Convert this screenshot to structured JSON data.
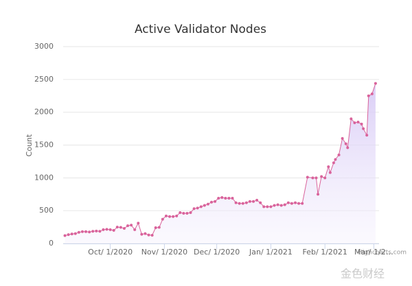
{
  "chart_data": {
    "type": "line",
    "title": "Active Validator Nodes",
    "y_label": "Count",
    "credits": "Highcharts.com",
    "watermark": "金色财经",
    "color": "#d9639b",
    "area": true,
    "grid": true,
    "x": [
      "2020-09-05",
      "2020-09-07",
      "2020-09-09",
      "2020-09-11",
      "2020-09-13",
      "2020-09-15",
      "2020-09-17",
      "2020-09-19",
      "2020-09-21",
      "2020-09-23",
      "2020-09-25",
      "2020-09-27",
      "2020-09-29",
      "2020-10-01",
      "2020-10-03",
      "2020-10-05",
      "2020-10-07",
      "2020-10-09",
      "2020-10-11",
      "2020-10-13",
      "2020-10-15",
      "2020-10-17",
      "2020-10-19",
      "2020-10-21",
      "2020-10-23",
      "2020-10-25",
      "2020-10-27",
      "2020-10-29",
      "2020-10-31",
      "2020-11-02",
      "2020-11-04",
      "2020-11-06",
      "2020-11-08",
      "2020-11-10",
      "2020-11-12",
      "2020-11-14",
      "2020-11-16",
      "2020-11-18",
      "2020-11-20",
      "2020-11-22",
      "2020-11-24",
      "2020-11-26",
      "2020-11-28",
      "2020-11-30",
      "2020-12-02",
      "2020-12-04",
      "2020-12-06",
      "2020-12-08",
      "2020-12-10",
      "2020-12-12",
      "2020-12-14",
      "2020-12-16",
      "2020-12-18",
      "2020-12-20",
      "2020-12-22",
      "2020-12-24",
      "2020-12-26",
      "2020-12-28",
      "2020-12-30",
      "2021-01-01",
      "2021-01-03",
      "2021-01-05",
      "2021-01-07",
      "2021-01-09",
      "2021-01-11",
      "2021-01-13",
      "2021-01-15",
      "2021-01-17",
      "2021-01-19",
      "2021-01-22",
      "2021-01-25",
      "2021-01-27",
      "2021-01-28",
      "2021-01-30",
      "2021-02-01",
      "2021-02-03",
      "2021-02-04",
      "2021-02-06",
      "2021-02-07",
      "2021-02-09",
      "2021-02-11",
      "2021-02-13",
      "2021-02-14",
      "2021-02-16",
      "2021-02-18",
      "2021-02-20",
      "2021-02-22",
      "2021-02-23",
      "2021-02-25",
      "2021-02-26",
      "2021-02-28",
      "2021-03-02"
    ],
    "values": [
      120,
      135,
      145,
      150,
      170,
      180,
      180,
      175,
      185,
      190,
      185,
      210,
      215,
      210,
      200,
      250,
      245,
      230,
      270,
      280,
      210,
      310,
      140,
      150,
      130,
      125,
      240,
      245,
      370,
      420,
      410,
      410,
      420,
      470,
      460,
      460,
      470,
      530,
      540,
      560,
      580,
      600,
      630,
      640,
      690,
      700,
      690,
      690,
      690,
      620,
      610,
      610,
      620,
      640,
      640,
      660,
      620,
      560,
      560,
      560,
      580,
      590,
      580,
      590,
      620,
      610,
      620,
      610,
      610,
      1010,
      1000,
      1000,
      750,
      1020,
      1000,
      1170,
      1080,
      1230,
      1280,
      1350,
      1600,
      1520,
      1460,
      1900,
      1840,
      1850,
      1820,
      1750,
      1650,
      2250,
      2280,
      2440
    ],
    "xlim": [
      "2020-09-04",
      "2021-03-04"
    ],
    "xticks": [
      {
        "value": "2020-10-01",
        "label": "Oct/ 1/2020"
      },
      {
        "value": "2020-11-01",
        "label": "Nov/ 1/2020"
      },
      {
        "value": "2020-12-01",
        "label": "Dec/ 1/2020"
      },
      {
        "value": "2021-01-01",
        "label": "Jan/ 1/2021"
      },
      {
        "value": "2021-02-01",
        "label": "Feb/ 1/2021"
      },
      {
        "value": "2021-03-01",
        "label": "Mar/ 1/2…"
      }
    ],
    "ylim": [
      0,
      3000
    ],
    "yticks": [
      0,
      500,
      1000,
      1500,
      2000,
      2500,
      3000
    ]
  }
}
